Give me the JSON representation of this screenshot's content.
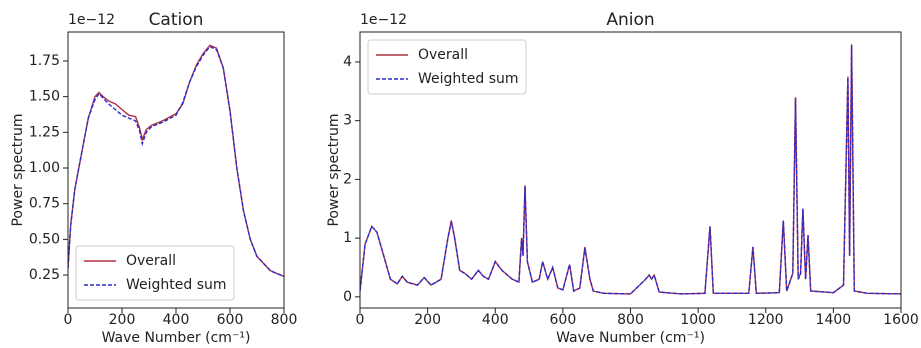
{
  "chart_data": [
    {
      "type": "line",
      "title": "Cation",
      "offset_text": "1e−12",
      "xlabel": "Wave Number (cm⁻¹)",
      "ylabel": "Power spectrum",
      "x": [
        0,
        10,
        25,
        50,
        75,
        100,
        115,
        130,
        150,
        175,
        200,
        225,
        250,
        265,
        275,
        290,
        310,
        350,
        400,
        425,
        450,
        475,
        500,
        525,
        550,
        575,
        600,
        625,
        650,
        675,
        700,
        750,
        800
      ],
      "series": [
        {
          "name": "Overall",
          "color": "#b03040",
          "dash": false,
          "values": [
            0.3,
            0.6,
            0.85,
            1.1,
            1.35,
            1.5,
            1.53,
            1.5,
            1.47,
            1.45,
            1.41,
            1.37,
            1.36,
            1.28,
            1.2,
            1.27,
            1.3,
            1.33,
            1.38,
            1.45,
            1.6,
            1.72,
            1.8,
            1.86,
            1.84,
            1.7,
            1.4,
            1.0,
            0.7,
            0.5,
            0.38,
            0.28,
            0.24
          ]
        },
        {
          "name": "Weighted sum",
          "color": "#2a2ad0",
          "dash": true,
          "values": [
            0.3,
            0.6,
            0.85,
            1.1,
            1.35,
            1.48,
            1.52,
            1.49,
            1.45,
            1.41,
            1.37,
            1.35,
            1.33,
            1.26,
            1.17,
            1.25,
            1.29,
            1.32,
            1.37,
            1.46,
            1.6,
            1.71,
            1.79,
            1.85,
            1.83,
            1.7,
            1.4,
            1.0,
            0.7,
            0.5,
            0.38,
            0.28,
            0.24
          ]
        }
      ],
      "xlim": [
        0,
        800
      ],
      "xticks": [
        0,
        200,
        400,
        600,
        800
      ],
      "ylim": [
        0.019,
        1.953
      ],
      "yticks": [
        0.25,
        {
          "value": 0.5,
          "label": "0.50"
        },
        0.75,
        {
          "value": 1,
          "label": "1.00"
        },
        1.25,
        {
          "value": 1.5,
          "label": "1.50"
        },
        1.75
      ],
      "legend": "lower left",
      "grid": false
    },
    {
      "type": "line",
      "title": "Anion",
      "offset_text": "1e−12",
      "xlabel": "Wave Number (cm⁻¹)",
      "ylabel": "Power spectrum",
      "x": [
        0,
        15,
        35,
        50,
        70,
        90,
        110,
        125,
        140,
        170,
        190,
        210,
        240,
        260,
        270,
        280,
        295,
        310,
        330,
        350,
        365,
        380,
        400,
        420,
        450,
        470,
        478,
        482,
        488,
        495,
        510,
        530,
        540,
        555,
        570,
        585,
        600,
        620,
        632,
        650,
        665,
        680,
        690,
        720,
        800,
        845,
        855,
        862,
        870,
        885,
        950,
        1020,
        1035,
        1045,
        1150,
        1162,
        1172,
        1240,
        1252,
        1262,
        1280,
        1288,
        1296,
        1303,
        1310,
        1318,
        1325,
        1333,
        1400,
        1430,
        1443,
        1448,
        1454,
        1462,
        1500,
        1600
      ],
      "series": [
        {
          "name": "Overall",
          "color": "#b03040",
          "dash": false,
          "values": [
            0.1,
            0.9,
            1.2,
            1.1,
            0.7,
            0.3,
            0.22,
            0.35,
            0.25,
            0.2,
            0.33,
            0.2,
            0.3,
            1.0,
            1.3,
            1.0,
            0.45,
            0.4,
            0.3,
            0.45,
            0.35,
            0.3,
            0.6,
            0.45,
            0.3,
            0.25,
            1.0,
            0.7,
            1.9,
            0.6,
            0.25,
            0.3,
            0.6,
            0.3,
            0.5,
            0.15,
            0.12,
            0.55,
            0.1,
            0.15,
            0.85,
            0.3,
            0.1,
            0.06,
            0.05,
            0.3,
            0.37,
            0.3,
            0.37,
            0.08,
            0.05,
            0.06,
            1.2,
            0.06,
            0.06,
            0.85,
            0.06,
            0.07,
            1.3,
            0.1,
            0.4,
            3.4,
            0.3,
            0.4,
            1.5,
            0.3,
            1.05,
            0.1,
            0.07,
            0.2,
            3.75,
            0.7,
            4.3,
            0.1,
            0.06,
            0.05
          ]
        },
        {
          "name": "Weighted sum",
          "color": "#2a2ad0",
          "dash": true,
          "values": [
            0.1,
            0.9,
            1.2,
            1.1,
            0.7,
            0.3,
            0.22,
            0.35,
            0.25,
            0.2,
            0.33,
            0.2,
            0.3,
            1.0,
            1.28,
            1.0,
            0.45,
            0.4,
            0.3,
            0.45,
            0.35,
            0.3,
            0.6,
            0.45,
            0.3,
            0.25,
            1.0,
            0.7,
            1.88,
            0.6,
            0.25,
            0.3,
            0.6,
            0.3,
            0.5,
            0.15,
            0.12,
            0.55,
            0.1,
            0.15,
            0.83,
            0.3,
            0.1,
            0.06,
            0.05,
            0.3,
            0.37,
            0.3,
            0.37,
            0.08,
            0.05,
            0.06,
            1.2,
            0.06,
            0.06,
            0.85,
            0.06,
            0.07,
            1.3,
            0.1,
            0.4,
            3.38,
            0.3,
            0.4,
            1.5,
            0.3,
            1.05,
            0.1,
            0.07,
            0.2,
            3.73,
            0.7,
            4.28,
            0.1,
            0.06,
            0.05
          ]
        }
      ],
      "xlim": [
        0,
        1600
      ],
      "xticks": [
        0,
        200,
        400,
        600,
        800,
        1000,
        1200,
        1400,
        1600
      ],
      "ylim": [
        -0.19,
        4.51
      ],
      "yticks": [
        0,
        1,
        2,
        3,
        4
      ],
      "legend": "upper left",
      "grid": false
    }
  ]
}
